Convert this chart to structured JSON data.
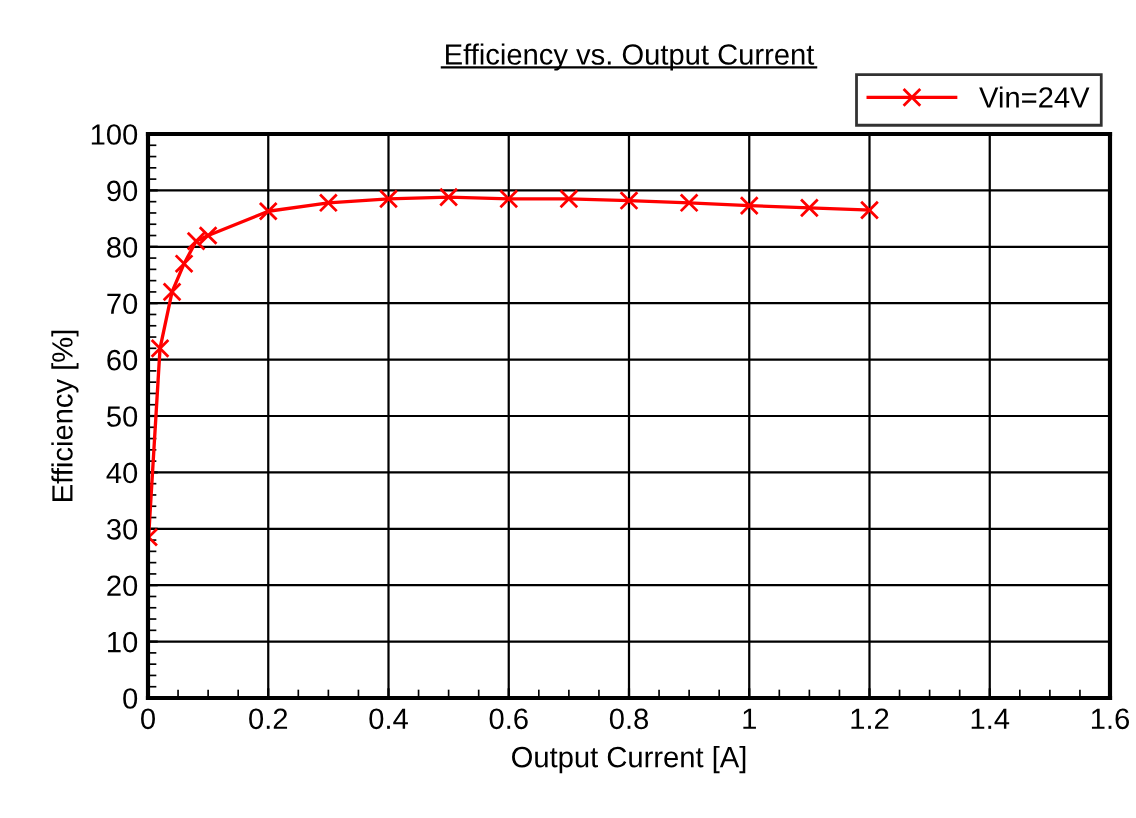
{
  "chart_data": {
    "type": "line",
    "title": "Efficiency vs. Output Current",
    "xlabel": "Output Current [A]",
    "ylabel": "Efficiency [%]",
    "x": [
      0.001,
      0.02,
      0.04,
      0.06,
      0.08,
      0.1,
      0.2,
      0.3,
      0.4,
      0.5,
      0.6,
      0.7,
      0.8,
      0.9,
      1.0,
      1.1,
      1.2
    ],
    "series": [
      {
        "name": "Vin=24V",
        "color": "#ff0000",
        "values": [
          28.5,
          62,
          72,
          77,
          81,
          82,
          86.3,
          87.8,
          88.5,
          88.8,
          88.5,
          88.5,
          88.2,
          87.8,
          87.3,
          86.9,
          86.5
        ]
      }
    ],
    "xlim": [
      0,
      1.6
    ],
    "xticks": [
      0,
      0.2,
      0.4,
      0.6,
      0.8,
      1,
      1.2,
      1.4,
      1.6
    ],
    "ylim": [
      0,
      100
    ],
    "yticks": [
      0,
      10,
      20,
      30,
      40,
      50,
      60,
      70,
      80,
      90,
      100
    ],
    "grid": true,
    "legend": "top right",
    "marker": "cross",
    "line_style": "solid"
  }
}
